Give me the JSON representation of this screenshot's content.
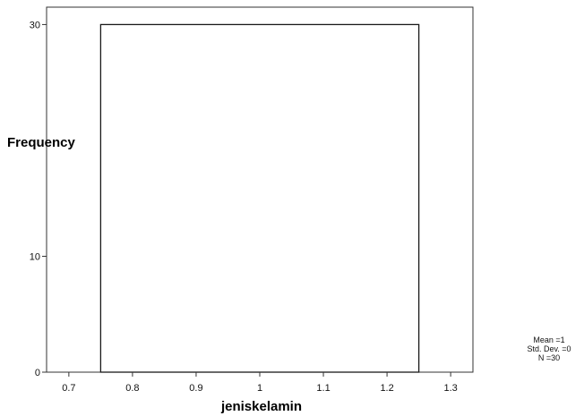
{
  "chart_data": {
    "type": "bar",
    "title": "",
    "xlabel": "jeniskelamin",
    "ylabel": "Frequency",
    "bins": [
      {
        "x0": 0.75,
        "x1": 1.25,
        "count": 30
      }
    ],
    "xlim": [
      0.665,
      1.335
    ],
    "ylim": [
      0,
      31.5
    ],
    "x_ticks": [
      0.7,
      0.8,
      0.9,
      1,
      1.1,
      1.2,
      1.3
    ],
    "x_tick_labels": [
      "0.7",
      "0.8",
      "0.9",
      "1",
      "1.1",
      "1.2",
      "1.3"
    ],
    "y_ticks": [
      0,
      10,
      30
    ],
    "y_tick_labels": [
      "0",
      "10",
      "30"
    ],
    "grid": false,
    "legend": "none",
    "stats": {
      "mean": "Mean =1",
      "std": "Std. Dev. =0",
      "n": "N =30"
    },
    "colors": {
      "bar_fill": "#ffffff",
      "bar_stroke": "#1a1a1a",
      "frame": "#333333"
    }
  }
}
